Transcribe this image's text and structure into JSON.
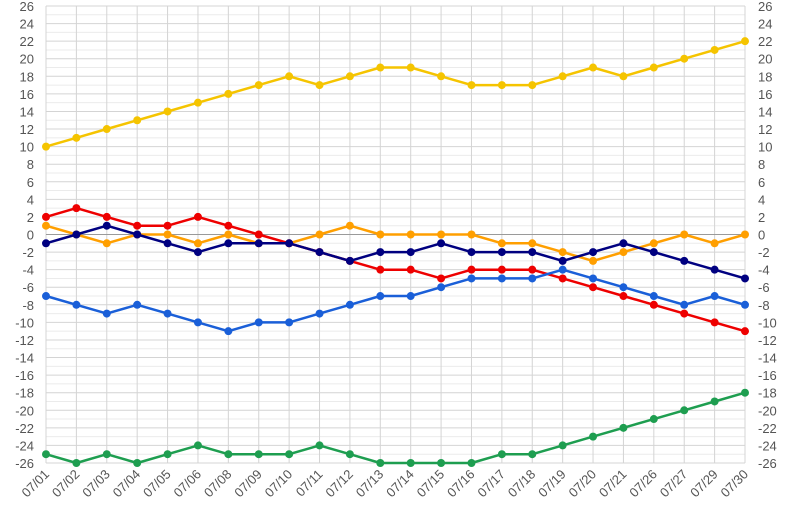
{
  "chart_data": {
    "type": "line",
    "categories": [
      "07/01",
      "07/02",
      "07/03",
      "07/04",
      "07/05",
      "07/06",
      "07/08",
      "07/09",
      "07/10",
      "07/11",
      "07/12",
      "07/13",
      "07/14",
      "07/15",
      "07/16",
      "07/17",
      "07/18",
      "07/19",
      "07/20",
      "07/21",
      "07/26",
      "07/27",
      "07/29",
      "07/30"
    ],
    "ylim": [
      -26,
      26
    ],
    "yticks": [
      -26,
      -24,
      -22,
      -20,
      -18,
      -16,
      -14,
      -12,
      -10,
      -8,
      -6,
      -4,
      -2,
      0,
      2,
      4,
      6,
      8,
      10,
      12,
      14,
      16,
      18,
      20,
      22,
      24,
      26
    ],
    "grid": true,
    "legend": "none",
    "series": [
      {
        "color": "#f5c400",
        "values": [
          10,
          11,
          12,
          13,
          14,
          15,
          16,
          17,
          18,
          17,
          18,
          19,
          19,
          18,
          17,
          17,
          17,
          18,
          19,
          18,
          19,
          20,
          21,
          22
        ]
      },
      {
        "color": "#ff9f00",
        "values": [
          1,
          0,
          -1,
          0,
          0,
          -1,
          0,
          -1,
          -1,
          0,
          1,
          0,
          0,
          0,
          0,
          -1,
          -1,
          -2,
          -3,
          -2,
          -1,
          0,
          -1,
          0
        ]
      },
      {
        "color": "#ee0000",
        "values": [
          2,
          3,
          2,
          1,
          1,
          2,
          1,
          0,
          -1,
          -2,
          -3,
          -4,
          -4,
          -5,
          -4,
          -4,
          -4,
          -5,
          -6,
          -7,
          -8,
          -9,
          -10,
          -11
        ]
      },
      {
        "color": "#000080",
        "values": [
          -1,
          0,
          1,
          0,
          -1,
          -2,
          -1,
          -1,
          -1,
          -2,
          -3,
          -2,
          -2,
          -1,
          -2,
          -2,
          -2,
          -3,
          -2,
          -1,
          -2,
          -3,
          -4,
          -5
        ]
      },
      {
        "color": "#1a5fd8",
        "values": [
          -7,
          -8,
          -9,
          -8,
          -9,
          -10,
          -11,
          -10,
          -10,
          -9,
          -8,
          -7,
          -7,
          -6,
          -5,
          -5,
          -5,
          -4,
          -5,
          -6,
          -7,
          -8,
          -7,
          -8
        ]
      },
      {
        "color": "#1e9e50",
        "values": [
          -25,
          -26,
          -25,
          -26,
          -25,
          -24,
          -25,
          -25,
          -25,
          -24,
          -25,
          -26,
          -26,
          -26,
          -26,
          -25,
          -25,
          -24,
          -23,
          -22,
          -21,
          -20,
          -19,
          -18
        ]
      }
    ]
  }
}
